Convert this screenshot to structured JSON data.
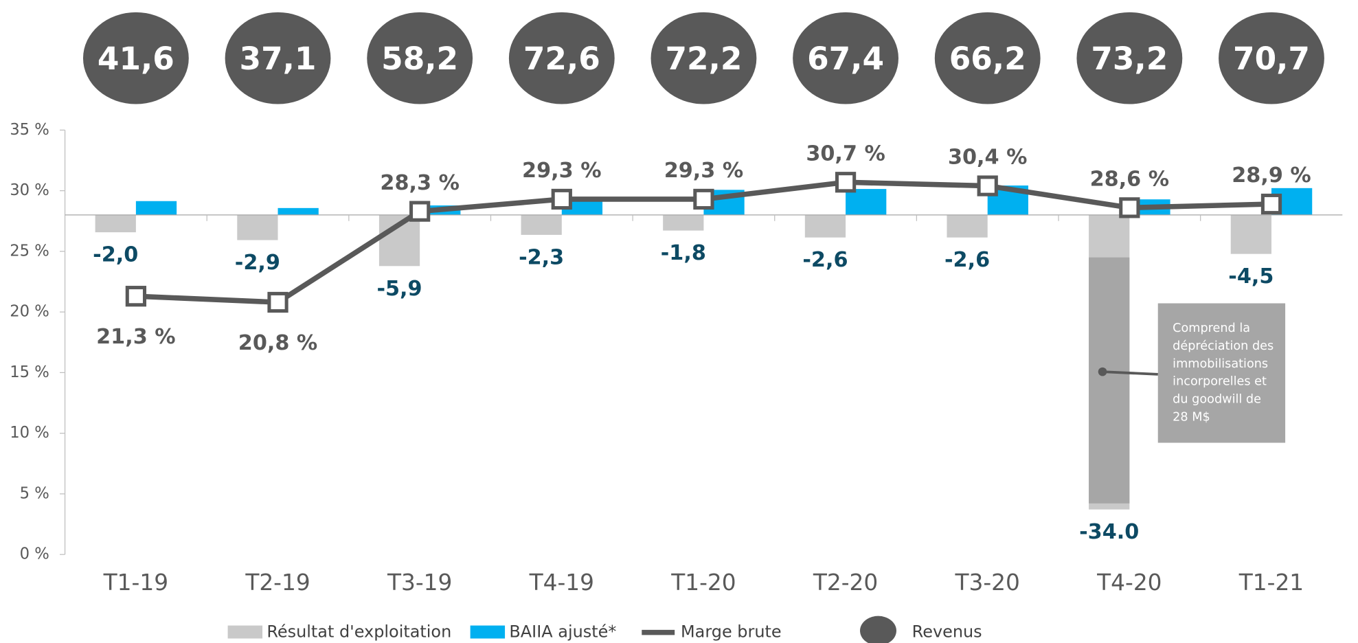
{
  "chart_data": {
    "type": "bar",
    "categories": [
      "T1-19",
      "T2-19",
      "T3-19",
      "T4-19",
      "T1-20",
      "T2-20",
      "T3-20",
      "T4-20",
      "T1-21"
    ],
    "ylim": [
      0,
      35
    ],
    "yticks": [
      {
        "value": 0,
        "label": "0 %"
      },
      {
        "value": 5,
        "label": "5 %"
      },
      {
        "value": 10,
        "label": "10 %"
      },
      {
        "value": 15,
        "label": "15 %"
      },
      {
        "value": 20,
        "label": "20 %"
      },
      {
        "value": 25,
        "label": "25 %"
      },
      {
        "value": 30,
        "label": "30 %"
      },
      {
        "value": 35,
        "label": "35 %"
      }
    ],
    "y2lim": [
      -39.2,
      9.8
    ],
    "series": [
      {
        "name": "Résultat d'exploitation",
        "type": "bar",
        "axis": "y2",
        "color": "#c9c9c9",
        "values": [
          -2.0,
          -2.9,
          -5.9,
          -2.3,
          -1.8,
          -2.6,
          -2.6,
          -34.0,
          -4.5
        ],
        "value_labels": [
          "-2,0",
          "-2,9",
          "-5,9",
          "-2,3",
          "-1,8",
          "-2,6",
          "-2,6",
          "-34.0",
          "-4,5"
        ]
      },
      {
        "name": "BAIIA ajusté*",
        "type": "bar",
        "axis": "y2",
        "color": "#00b0f0",
        "values": [
          1.6,
          0.8,
          1.1,
          1.7,
          2.9,
          3.0,
          3.4,
          1.8,
          3.1
        ]
      },
      {
        "name": "Marge brute",
        "type": "line",
        "color": "#595959",
        "values": [
          21.3,
          20.8,
          28.3,
          29.3,
          29.3,
          30.7,
          30.4,
          28.6,
          28.9
        ],
        "value_labels": [
          "21,3 %",
          "20,8 %",
          "28,3 %",
          "29,3 %",
          "29,3 %",
          "30,7 %",
          "30,4 %",
          "28,6 %",
          "28,9 %"
        ]
      },
      {
        "name": "Revenus",
        "type": "bubble",
        "color": "#595959",
        "values": [
          41.6,
          37.1,
          58.2,
          72.6,
          72.2,
          67.4,
          66.2,
          73.2,
          70.7
        ],
        "value_labels": [
          "41,6",
          "37,1",
          "58,2",
          "72,6",
          "72,2",
          "67,4",
          "66,2",
          "73,2",
          "70,7"
        ]
      }
    ],
    "annotation": [
      "Comprend la",
      "dépréciation des",
      "immobilisations",
      "incorporelles et",
      "du goodwill de",
      "28 M$"
    ]
  }
}
